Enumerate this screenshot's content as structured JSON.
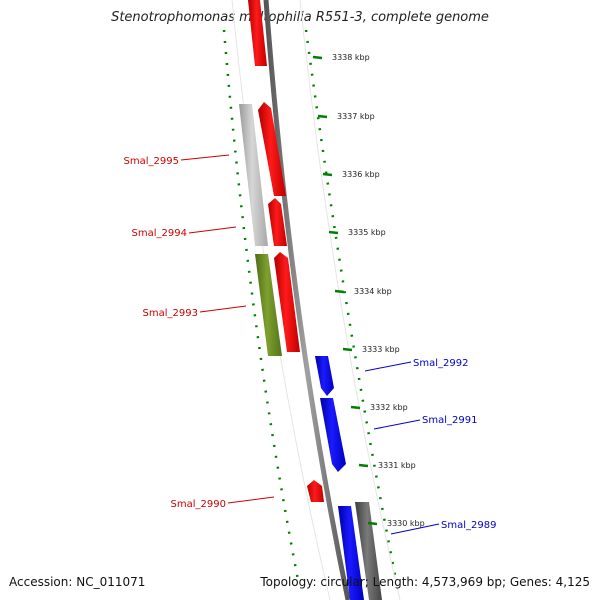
{
  "title": "Stenotrophomonas maltophilia R551-3, complete genome",
  "accession": "Accession: NC_011071",
  "summary": "Topology: circular; Length: 4,573,969 bp; Genes: 4,125",
  "colors": {
    "forward": "#ff0000",
    "reverse": "#0000ff",
    "olive": "#6b8e23",
    "grey": "#c0c0c0",
    "dark_grey": "#606060",
    "backbone": "#777777",
    "tick": "#008000",
    "label_forward": "#cc0000",
    "label_reverse": "#0000cc"
  },
  "ticks": [
    {
      "label": "3338 kbp"
    },
    {
      "label": "3337 kbp"
    },
    {
      "label": "3336 kbp"
    },
    {
      "label": "3335 kbp"
    },
    {
      "label": "3334 kbp"
    },
    {
      "label": "3333 kbp"
    },
    {
      "label": "3332 kbp"
    },
    {
      "label": "3331 kbp"
    },
    {
      "label": "3330 kbp"
    }
  ],
  "gene_labels": [
    {
      "text": "Smal_2995",
      "strand": "forward"
    },
    {
      "text": "Smal_2994",
      "strand": "forward"
    },
    {
      "text": "Smal_2993",
      "strand": "forward"
    },
    {
      "text": "Smal_2992",
      "strand": "reverse"
    },
    {
      "text": "Smal_2991",
      "strand": "reverse"
    },
    {
      "text": "Smal_2990",
      "strand": "forward"
    },
    {
      "text": "Smal_2989",
      "strand": "reverse"
    }
  ]
}
